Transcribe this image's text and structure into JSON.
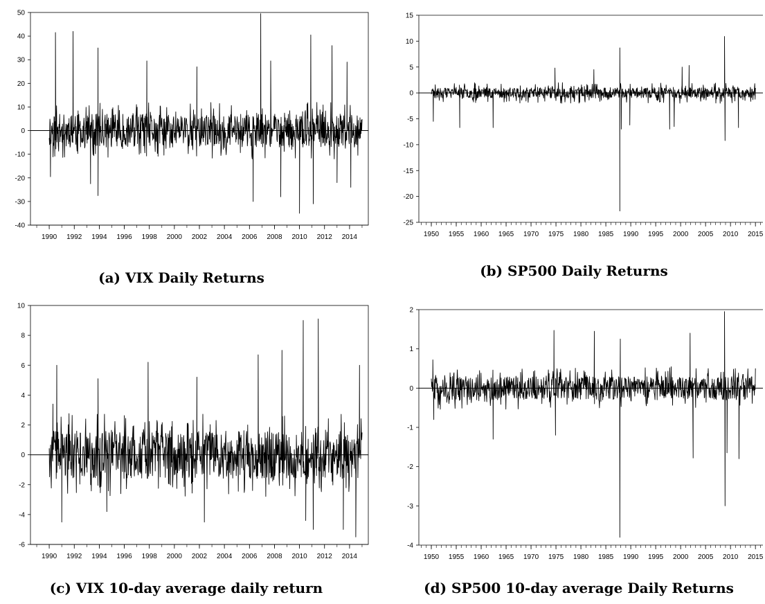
{
  "chart_data": [
    {
      "type": "line",
      "caption": "(a) VIX Daily Returns",
      "frame": "box",
      "ylim": [
        -40,
        50
      ],
      "yticks": [
        -40,
        -30,
        -20,
        -10,
        0,
        10,
        20,
        30,
        40,
        50
      ],
      "xlim": [
        1988.5,
        2015.5
      ],
      "xtick_values": [
        1990,
        1992,
        1994,
        1996,
        1998,
        2000,
        2002,
        2004,
        2006,
        2008,
        2010,
        2012,
        2014
      ],
      "xticks": [
        "1990",
        "1992",
        "1994",
        "1996",
        "1998",
        "2000",
        "2002",
        "2004",
        "2006",
        "2008",
        "2010",
        "2012",
        "2014"
      ],
      "x_start": 1990.0,
      "x_end": 2015.0,
      "zero_line": true,
      "noise": {
        "band": [
          -7,
          7
        ],
        "typical": [
          -12,
          12
        ],
        "seed": 11
      },
      "spikes": [
        {
          "x": 1990.5,
          "y": 41.5
        },
        {
          "x": 1991.9,
          "y": 42
        },
        {
          "x": 1993.9,
          "y": 35
        },
        {
          "x": 1997.8,
          "y": 29.5
        },
        {
          "x": 2001.8,
          "y": 27
        },
        {
          "x": 2006.9,
          "y": 49.5
        },
        {
          "x": 2007.7,
          "y": 29.5
        },
        {
          "x": 2010.9,
          "y": 40.5
        },
        {
          "x": 2012.6,
          "y": 36
        },
        {
          "x": 2013.8,
          "y": 29
        },
        {
          "x": 1993.3,
          "y": -22.5
        },
        {
          "x": 1993.9,
          "y": -27.5
        },
        {
          "x": 1990.1,
          "y": -19.5
        },
        {
          "x": 2006.3,
          "y": -30
        },
        {
          "x": 2008.5,
          "y": -28
        },
        {
          "x": 2010.0,
          "y": -35
        },
        {
          "x": 2011.1,
          "y": -31
        },
        {
          "x": 2013.0,
          "y": -22
        },
        {
          "x": 2014.1,
          "y": -24
        }
      ]
    },
    {
      "type": "line",
      "caption": "(b) SP500 Daily Returns",
      "frame": "top-left",
      "ylim": [
        -25,
        15
      ],
      "yticks": [
        -25,
        -20,
        -15,
        -10,
        -5,
        0,
        5,
        10,
        15
      ],
      "xlim": [
        1947.5,
        2016.5
      ],
      "xtick_values": [
        1950,
        1955,
        1960,
        1965,
        1970,
        1975,
        1980,
        1985,
        1990,
        1995,
        2000,
        2005,
        2010,
        2015
      ],
      "xticks": [
        "1950",
        "1955",
        "1960",
        "1965",
        "1970",
        "1975",
        "1980",
        "1985",
        "1990",
        "1995",
        "2000",
        "2005",
        "2010",
        "2015"
      ],
      "x_start": 1950.0,
      "x_end": 2015.0,
      "zero_line": true,
      "noise": {
        "band": [
          -1,
          1
        ],
        "typical": [
          -2,
          2
        ],
        "seed": 23
      },
      "spikes": [
        {
          "x": 1950.4,
          "y": -5.5
        },
        {
          "x": 1955.7,
          "y": -6.7
        },
        {
          "x": 1962.4,
          "y": -6.7
        },
        {
          "x": 1987.8,
          "y": -22.8
        },
        {
          "x": 1987.8,
          "y": 8.7
        },
        {
          "x": 1988.1,
          "y": -7
        },
        {
          "x": 1989.8,
          "y": -6.2
        },
        {
          "x": 1997.8,
          "y": -7
        },
        {
          "x": 1998.7,
          "y": -6.5
        },
        {
          "x": 2008.8,
          "y": 10.9
        },
        {
          "x": 2008.9,
          "y": -9.2
        },
        {
          "x": 2011.6,
          "y": -6.7
        },
        {
          "x": 2000.3,
          "y": 5
        },
        {
          "x": 2001.7,
          "y": 5.3
        },
        {
          "x": 1974.8,
          "y": 4.8
        },
        {
          "x": 1982.6,
          "y": 4.5
        }
      ]
    },
    {
      "type": "line",
      "caption": "(c) VIX 10-day average daily return",
      "frame": "box",
      "ylim": [
        -6,
        10
      ],
      "yticks": [
        -6,
        -4,
        -2,
        0,
        2,
        4,
        6,
        8,
        10
      ],
      "xlim": [
        1988.5,
        2015.5
      ],
      "xtick_values": [
        1990,
        1992,
        1994,
        1996,
        1998,
        2000,
        2002,
        2004,
        2006,
        2008,
        2010,
        2012,
        2014
      ],
      "xticks": [
        "1990",
        "1992",
        "1994",
        "1996",
        "1998",
        "2000",
        "2002",
        "2004",
        "2006",
        "2008",
        "2010",
        "2012",
        "2014"
      ],
      "x_start": 1990.0,
      "x_end": 2015.0,
      "zero_line": true,
      "noise": {
        "band": [
          -1.6,
          1.6
        ],
        "typical": [
          -2.8,
          2.8
        ],
        "seed": 37
      },
      "spikes": [
        {
          "x": 1990.3,
          "y": 3.4
        },
        {
          "x": 1990.6,
          "y": 6
        },
        {
          "x": 1991.0,
          "y": -4.5
        },
        {
          "x": 1993.9,
          "y": 5.1
        },
        {
          "x": 1997.9,
          "y": 6.2
        },
        {
          "x": 2001.8,
          "y": 5.2
        },
        {
          "x": 2002.4,
          "y": -4.5
        },
        {
          "x": 2006.7,
          "y": 6.7
        },
        {
          "x": 2008.6,
          "y": 7
        },
        {
          "x": 2010.3,
          "y": 9
        },
        {
          "x": 2011.5,
          "y": 9.1
        },
        {
          "x": 2010.5,
          "y": -4.4
        },
        {
          "x": 2011.1,
          "y": -5
        },
        {
          "x": 2013.5,
          "y": -5
        },
        {
          "x": 2014.5,
          "y": -5.5
        },
        {
          "x": 2014.8,
          "y": 6
        },
        {
          "x": 1994.6,
          "y": -3.8
        }
      ]
    },
    {
      "type": "line",
      "caption": "(d) SP500 10-day average Daily Returns",
      "frame": "top-left",
      "ylim": [
        -4,
        2
      ],
      "yticks": [
        -4,
        -3,
        -2,
        -1,
        0,
        1,
        2
      ],
      "xlim": [
        1947.5,
        2016.5
      ],
      "xtick_values": [
        1950,
        1955,
        1960,
        1965,
        1970,
        1975,
        1980,
        1985,
        1990,
        1995,
        2000,
        2005,
        2010,
        2015
      ],
      "xticks": [
        "1950",
        "1955",
        "1960",
        "1965",
        "1970",
        "1975",
        "1980",
        "1985",
        "1990",
        "1995",
        "2000",
        "2005",
        "2010",
        "2015"
      ],
      "x_start": 1950.0,
      "x_end": 2015.0,
      "zero_line": true,
      "noise": {
        "band": [
          -0.3,
          0.3
        ],
        "typical": [
          -0.55,
          0.55
        ],
        "seed": 51
      },
      "spikes": [
        {
          "x": 1950.3,
          "y": 0.72
        },
        {
          "x": 1950.5,
          "y": -0.8
        },
        {
          "x": 1962.4,
          "y": -1.3
        },
        {
          "x": 1974.6,
          "y": 1.47
        },
        {
          "x": 1974.9,
          "y": -1.2
        },
        {
          "x": 1982.7,
          "y": 1.45
        },
        {
          "x": 1987.9,
          "y": 1.25
        },
        {
          "x": 1987.8,
          "y": -3.8
        },
        {
          "x": 2001.9,
          "y": 1.4
        },
        {
          "x": 2002.5,
          "y": -1.78
        },
        {
          "x": 2008.8,
          "y": 1.95
        },
        {
          "x": 2008.9,
          "y": -3
        },
        {
          "x": 2009.3,
          "y": -1.65
        },
        {
          "x": 2011.7,
          "y": -1.8
        }
      ]
    }
  ]
}
